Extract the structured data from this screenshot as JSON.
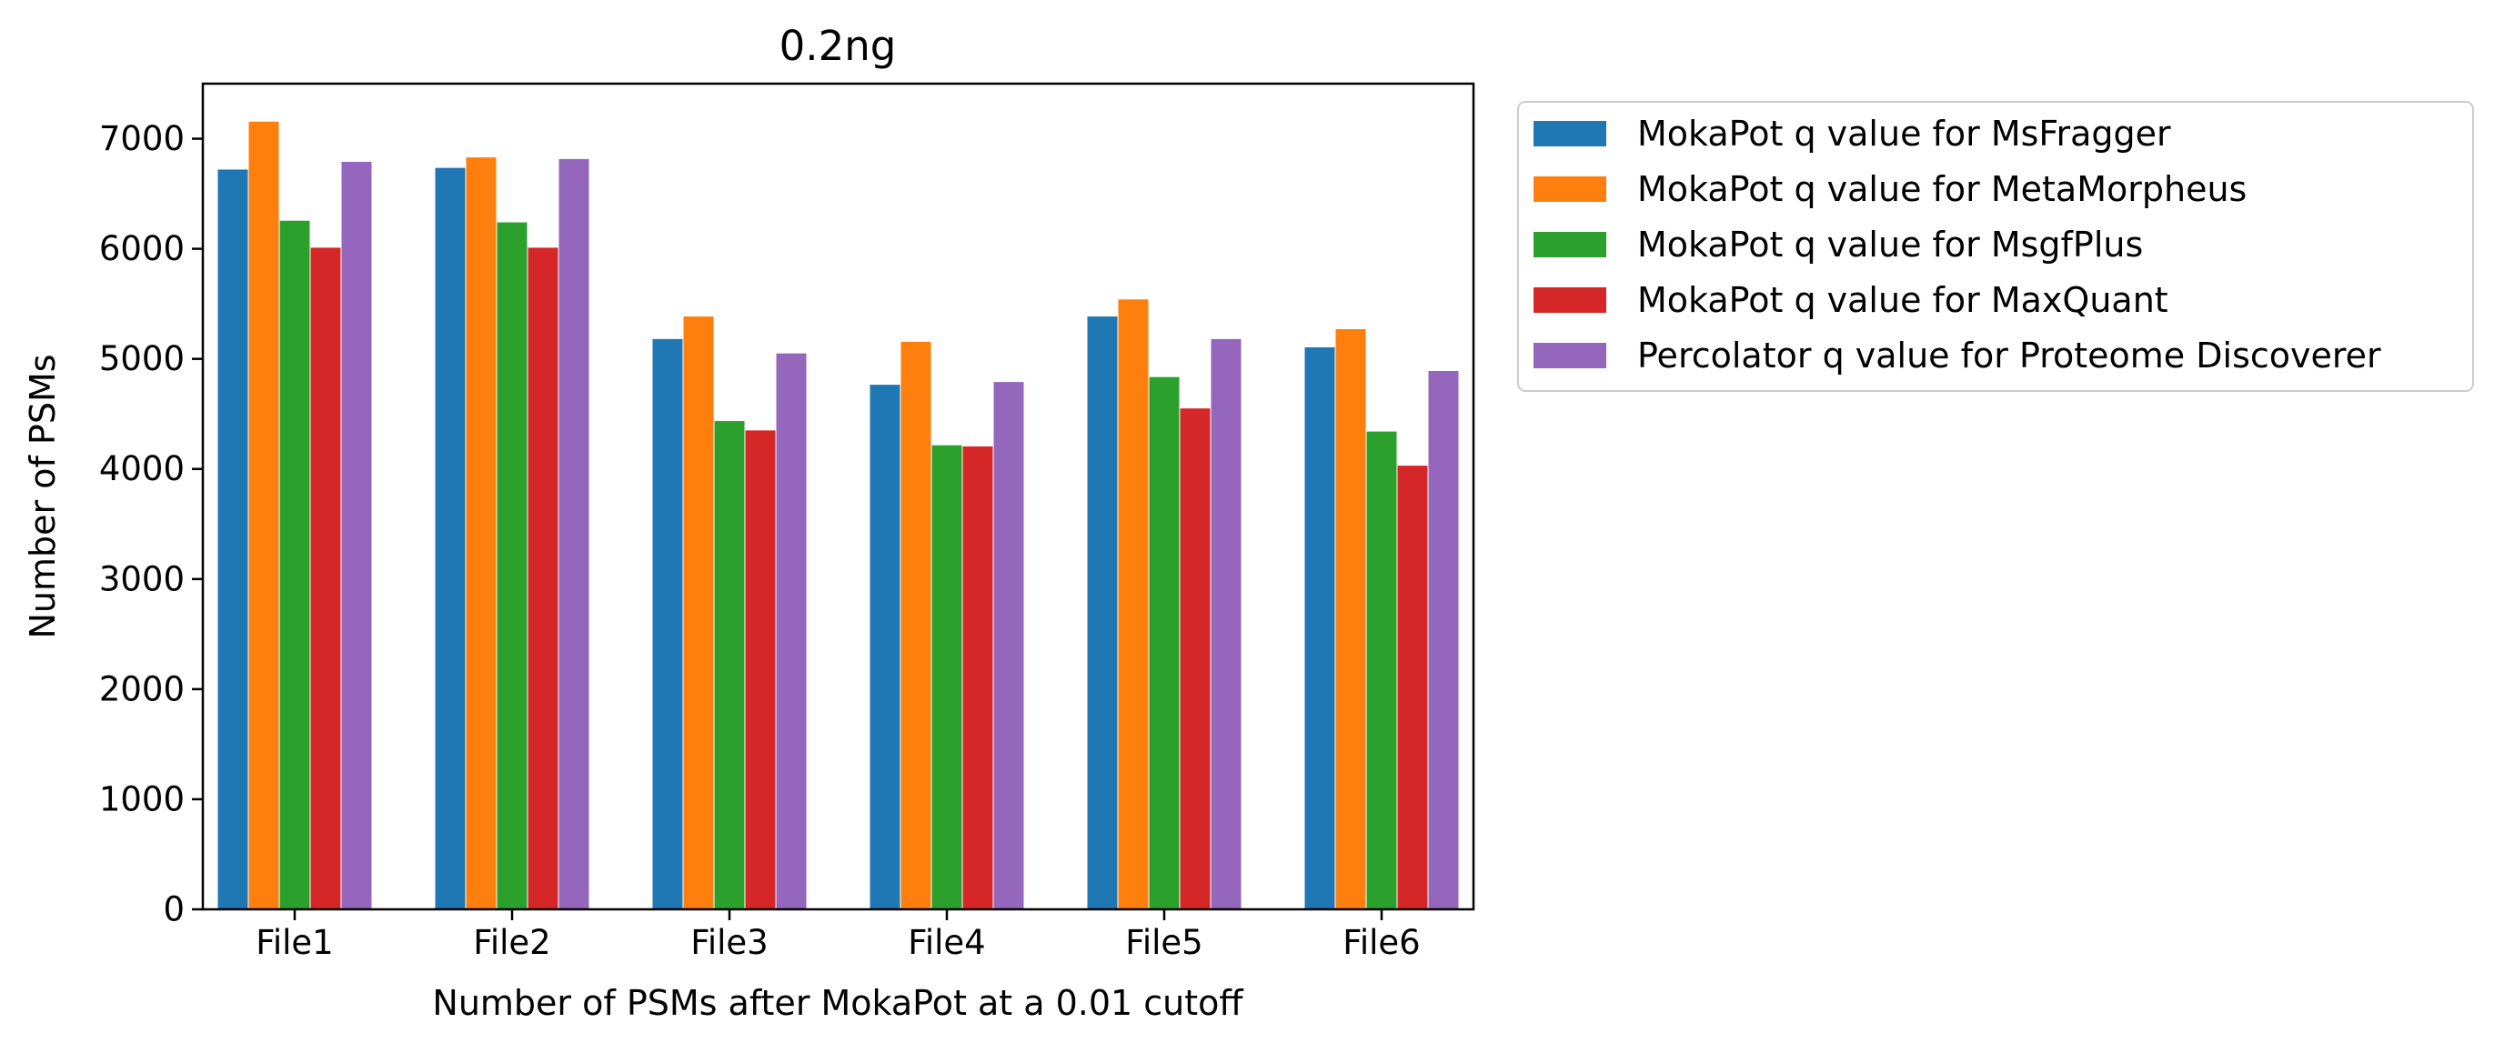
{
  "chart_data": {
    "type": "bar",
    "title": "0.2ng",
    "xlabel": "Number of PSMs after MokaPot at a 0.01 cutoff",
    "ylabel": "Number of PSMs",
    "categories": [
      "File1",
      "File2",
      "File3",
      "File4",
      "File5",
      "File6"
    ],
    "ylim": [
      0,
      7500
    ],
    "yticks": [
      0,
      1000,
      2000,
      3000,
      4000,
      5000,
      6000,
      7000
    ],
    "grid": false,
    "legend_position": "outside-right-top",
    "series": [
      {
        "name": "MokaPot q value for MsFragger",
        "color": "#1f77b4",
        "values": [
          6720,
          6735,
          5180,
          4765,
          5385,
          5105
        ]
      },
      {
        "name": "MokaPot q value for MetaMorpheus",
        "color": "#ff7f0e",
        "values": [
          7155,
          6830,
          5385,
          5155,
          5540,
          5270
        ]
      },
      {
        "name": "MokaPot q value for MsgfPlus",
        "color": "#2ca02c",
        "values": [
          6255,
          6240,
          4435,
          4215,
          4835,
          4340
        ]
      },
      {
        "name": "MokaPot q value for MaxQuant",
        "color": "#d62728",
        "values": [
          6010,
          6010,
          4350,
          4205,
          4550,
          4030
        ]
      },
      {
        "name": "Percolator q value for Proteome Discoverer",
        "color": "#9467bd",
        "values": [
          6790,
          6815,
          5050,
          4790,
          5180,
          4890
        ]
      }
    ]
  }
}
